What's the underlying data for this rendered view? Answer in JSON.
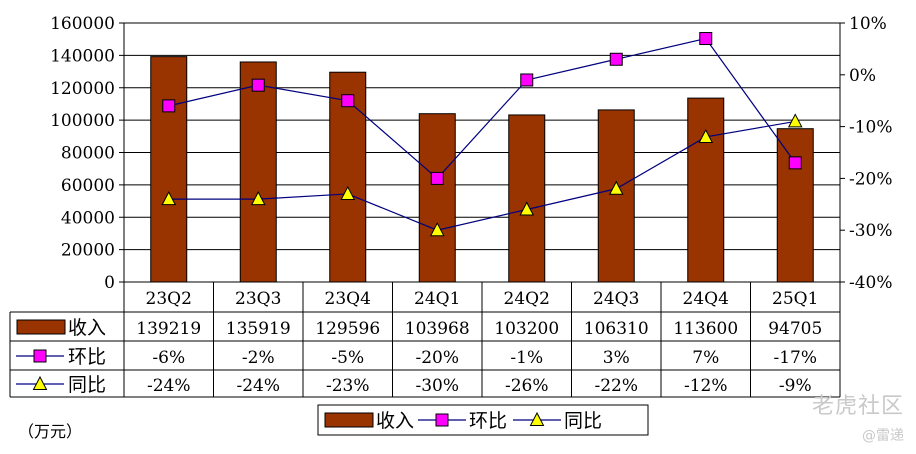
{
  "chart_data": {
    "type": "bar",
    "categories": [
      "23Q2",
      "23Q3",
      "23Q4",
      "24Q1",
      "24Q2",
      "24Q3",
      "24Q4",
      "25Q1"
    ],
    "series": [
      {
        "name": "收入",
        "type": "bar",
        "axis": "left",
        "values": [
          139219,
          135919,
          129596,
          103968,
          103200,
          106310,
          113600,
          94705
        ],
        "labels": [
          "139219",
          "135919",
          "129596",
          "103968",
          "103200",
          "106310",
          "113600",
          "94705"
        ],
        "color": "#993300"
      },
      {
        "name": "环比",
        "type": "line",
        "axis": "right",
        "values": [
          -6,
          -2,
          -5,
          -20,
          -1,
          3,
          7,
          -17
        ],
        "labels": [
          "-6%",
          "-2%",
          "-5%",
          "-20%",
          "-1%",
          "3%",
          "7%",
          "-17%"
        ],
        "color": "#FF00FF",
        "line_color": "#000080",
        "marker": "square"
      },
      {
        "name": "同比",
        "type": "line",
        "axis": "right",
        "values": [
          -24,
          -24,
          -23,
          -30,
          -26,
          -22,
          -12,
          -9
        ],
        "labels": [
          "-24%",
          "-24%",
          "-23%",
          "-30%",
          "-26%",
          "-22%",
          "-12%",
          "-9%"
        ],
        "color": "#FFFF00",
        "line_color": "#000080",
        "marker": "triangle"
      }
    ],
    "y_left": {
      "ylim": [
        0,
        160000
      ],
      "ticks": [
        "0",
        "20000",
        "40000",
        "60000",
        "80000",
        "100000",
        "120000",
        "140000",
        "160000"
      ]
    },
    "y_right": {
      "ylim": [
        -40,
        10
      ],
      "ticks": [
        "-40%",
        "-30%",
        "-20%",
        "-10%",
        "0%",
        "10%"
      ]
    },
    "grid": true,
    "legend": "bottom-center",
    "data_table": true
  },
  "unit_label": "（万元）",
  "watermark": {
    "line1": "老虎社区",
    "line2": "@雷递"
  }
}
